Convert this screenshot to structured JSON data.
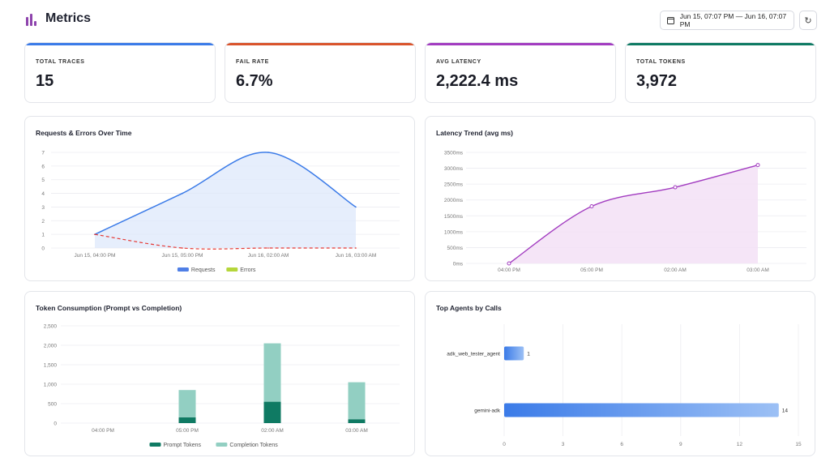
{
  "header": {
    "title": "Metrics",
    "date_range": "Jun 15, 07:07 PM — Jun 16, 07:07 PM",
    "refresh_icon": "refresh-icon",
    "calendar_icon": "calendar-icon"
  },
  "kpis": [
    {
      "label": "TOTAL TRACES",
      "value": "15",
      "color": "#3b7be8"
    },
    {
      "label": "FAIL RATE",
      "value": "6.7%",
      "color": "#d9542c"
    },
    {
      "label": "AVG LATENCY",
      "value": "2,222.4 ms",
      "color": "#a23cc0"
    },
    {
      "label": "TOTAL TOKENS",
      "value": "3,972",
      "color": "#0f7a63"
    }
  ],
  "chart_data": [
    {
      "type": "area",
      "title": "Requests & Errors Over Time",
      "x": [
        "Jun 15, 04:00 PM",
        "Jun 15, 05:00 PM",
        "Jun 16, 02:00 AM",
        "Jun 16, 03:00 AM"
      ],
      "series": [
        {
          "name": "Requests",
          "values": [
            1,
            4,
            7,
            3
          ],
          "color": "#3b7be8"
        },
        {
          "name": "Errors",
          "values": [
            1,
            0,
            0,
            0
          ],
          "color": "#e53935"
        }
      ],
      "legend": [
        {
          "name": "Requests",
          "color": "#4f7fe6"
        },
        {
          "name": "Errors",
          "color": "#b5d63a"
        }
      ],
      "yticks": [
        0,
        1,
        2,
        3,
        4,
        5,
        6,
        7
      ],
      "ylim": [
        0,
        7
      ]
    },
    {
      "type": "line",
      "title": "Latency Trend (avg ms)",
      "x": [
        "04:00 PM",
        "05:00 PM",
        "02:00 AM",
        "03:00 AM"
      ],
      "series": [
        {
          "values": [
            0,
            1800,
            2400,
            3100
          ],
          "color": "#a23cc0"
        }
      ],
      "yticks": [
        "0ms",
        "500ms",
        "1000ms",
        "1500ms",
        "2000ms",
        "2500ms",
        "3000ms",
        "3500ms"
      ],
      "ylim": [
        0,
        3500
      ]
    },
    {
      "type": "bar",
      "title": "Token Consumption (Prompt vs Completion)",
      "categories": [
        "04:00 PM",
        "05:00 PM",
        "02:00 AM",
        "03:00 AM"
      ],
      "series": [
        {
          "name": "Prompt Tokens",
          "values": [
            0,
            150,
            550,
            100
          ],
          "color": "#0f7a63"
        },
        {
          "name": "Completion Tokens",
          "values": [
            0,
            700,
            1500,
            950
          ],
          "color": "#92cfc2"
        }
      ],
      "yticks": [
        "0",
        "500",
        "1,000",
        "1,500",
        "2,000",
        "2,500"
      ],
      "ylim": [
        0,
        2500
      ]
    },
    {
      "type": "bar",
      "orientation": "horizontal",
      "title": "Top Agents by Calls",
      "categories": [
        "adk_web_tester_agent",
        "gemini-adk"
      ],
      "values": [
        1,
        14
      ],
      "xticks": [
        0,
        3,
        6,
        9,
        12,
        15
      ],
      "xlim": [
        0,
        15
      ],
      "color": "#3b7be8"
    }
  ]
}
